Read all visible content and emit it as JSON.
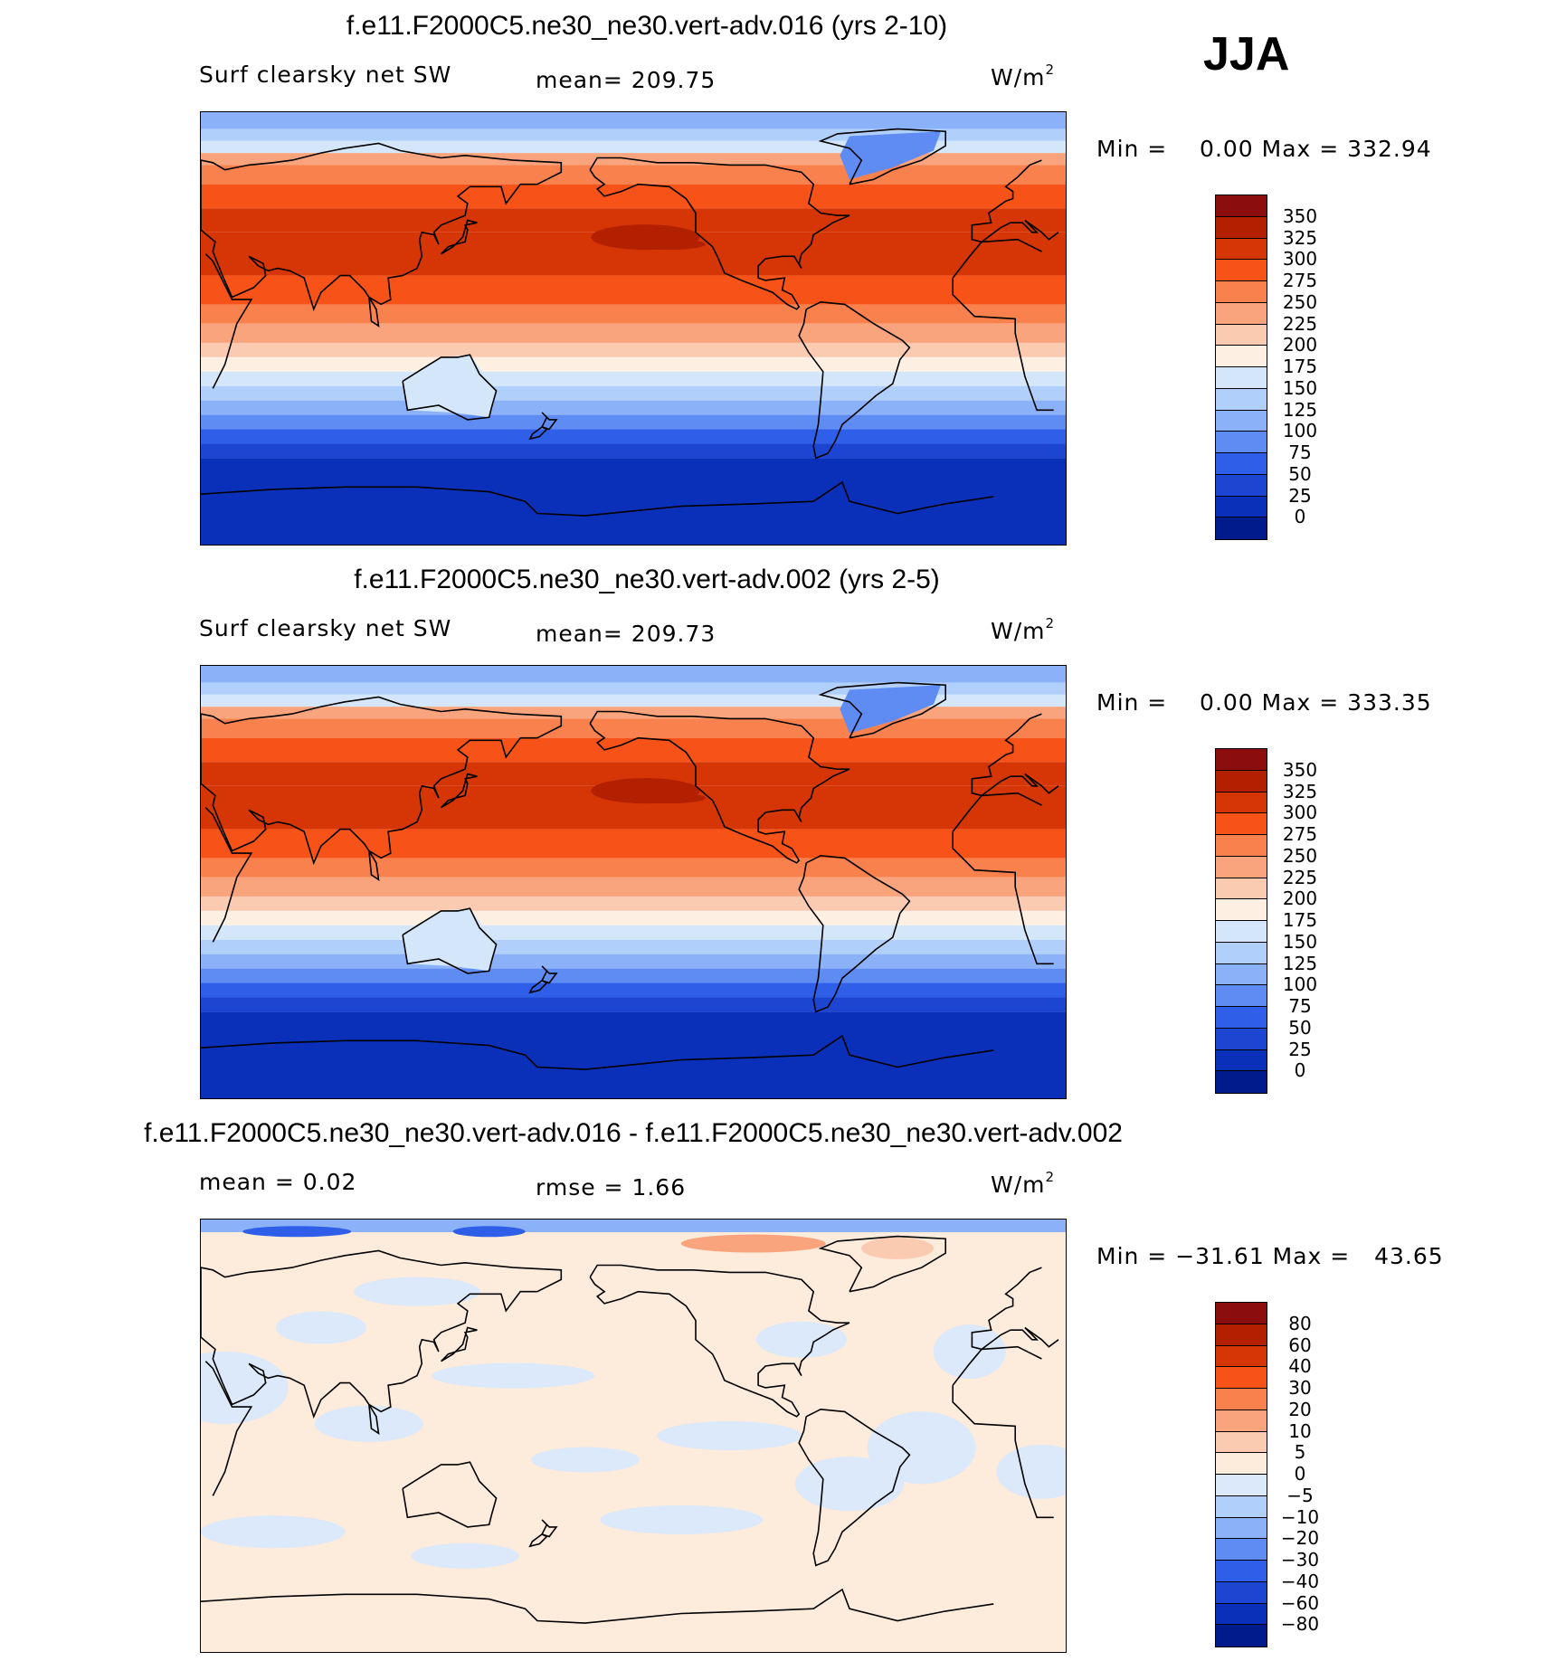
{
  "season": "JJA",
  "panels": [
    {
      "title": "f.e11.F2000C5.ne30_ne30.vert-adv.016 (yrs 2-10)",
      "left_label": "Surf clearsky net SW",
      "mid_label": "mean= 209.75",
      "unit": "W/m",
      "unit_sup": "2",
      "minmax": "Min =    0.00 Max = 332.94",
      "kind": "abs",
      "colorbar": {
        "colors": [
          "#8c0d0d",
          "#b32000",
          "#d63606",
          "#f75318",
          "#f8814e",
          "#f9a47c",
          "#fbcbb1",
          "#fdf0e3",
          "#d4e7fa",
          "#b0d0fb",
          "#8bb2f8",
          "#5f8cf3",
          "#2f5fe8",
          "#1c45d2",
          "#0a2fb8",
          "#001b8c"
        ],
        "ticks": [
          "350",
          "325",
          "300",
          "275",
          "250",
          "225",
          "200",
          "175",
          "150",
          "125",
          "100",
          "75",
          "50",
          "25",
          "0"
        ]
      }
    },
    {
      "title": "f.e11.F2000C5.ne30_ne30.vert-adv.002 (yrs 2-5)",
      "left_label": "Surf clearsky net SW",
      "mid_label": "mean= 209.73",
      "unit": "W/m",
      "unit_sup": "2",
      "minmax": "Min =    0.00 Max = 333.35",
      "kind": "abs",
      "colorbar": {
        "colors": [
          "#8c0d0d",
          "#b32000",
          "#d63606",
          "#f75318",
          "#f8814e",
          "#f9a47c",
          "#fbcbb1",
          "#fdf0e3",
          "#d4e7fa",
          "#b0d0fb",
          "#8bb2f8",
          "#5f8cf3",
          "#2f5fe8",
          "#1c45d2",
          "#0a2fb8",
          "#001b8c"
        ],
        "ticks": [
          "350",
          "325",
          "300",
          "275",
          "250",
          "225",
          "200",
          "175",
          "150",
          "125",
          "100",
          "75",
          "50",
          "25",
          "0"
        ]
      }
    },
    {
      "title": "f.e11.F2000C5.ne30_ne30.vert-adv.016 - f.e11.F2000C5.ne30_ne30.vert-adv.002",
      "left_label": "mean =    0.02",
      "mid_label": "rmse =    1.66",
      "unit": "W/m",
      "unit_sup": "2",
      "minmax": "Min = −31.61 Max =   43.65",
      "kind": "diff",
      "colorbar": {
        "colors": [
          "#8c0d0d",
          "#b32000",
          "#d63606",
          "#f75318",
          "#f8814e",
          "#f9a47c",
          "#fbcbb1",
          "#fdebdc",
          "#dbe9fa",
          "#b0d0fb",
          "#8bb2f8",
          "#5f8cf3",
          "#2f5fe8",
          "#1c45d2",
          "#0a2fb8",
          "#001b8c"
        ],
        "ticks": [
          "80",
          "60",
          "40",
          "30",
          "20",
          "10",
          "5",
          "0",
          "−5",
          "−10",
          "−20",
          "−30",
          "−40",
          "−60",
          "−80"
        ]
      }
    }
  ]
}
